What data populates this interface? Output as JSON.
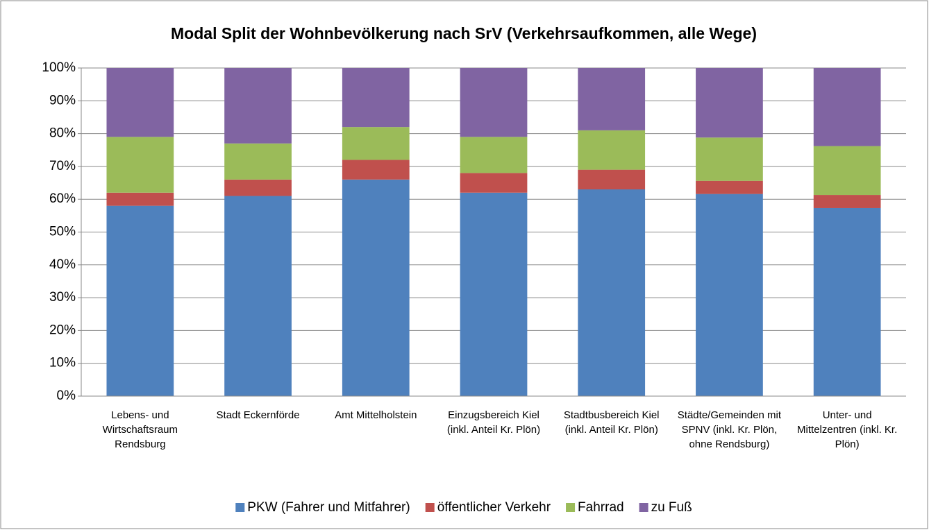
{
  "chart_data": {
    "type": "stacked_bar",
    "title": "Modal Split der Wohnbevölkerung nach SrV (Verkehrsaufkommen, alle Wege)",
    "categories": [
      "Lebens- und Wirtschaftsraum Rendsburg",
      "Stadt Eckernförde",
      "Amt Mittelholstein",
      "Einzugsbereich Kiel (inkl. Anteil Kr. Plön)",
      "Stadtbusbereich Kiel (inkl. Anteil Kr. Plön)",
      "Städte/Gemeinden mit SPNV (inkl. Kr. Plön, ohne Rendsburg)",
      "Unter- und Mittelzentren (inkl. Kr. Plön)"
    ],
    "series": [
      {
        "name": "PKW (Fahrer und Mitfahrer)",
        "color": "#4f81bd",
        "values": [
          58,
          61,
          66,
          62,
          63,
          61.6,
          57.3
        ]
      },
      {
        "name": "öffentlicher Verkehr",
        "color": "#c0504d",
        "values": [
          4,
          5,
          6,
          6,
          6,
          4,
          4
        ]
      },
      {
        "name": "Fahrrad",
        "color": "#9bbb59",
        "values": [
          17,
          11,
          10,
          11,
          12,
          13.2,
          14.9
        ]
      },
      {
        "name": "zu Fuß",
        "color": "#8064a2",
        "values": [
          21,
          23,
          18,
          21,
          19,
          21.2,
          23.8
        ]
      }
    ],
    "ylim": [
      0,
      100
    ],
    "yticks": [
      {
        "value": 0,
        "label": "0%"
      },
      {
        "value": 10,
        "label": "10%"
      },
      {
        "value": 20,
        "label": "20%"
      },
      {
        "value": 30,
        "label": "30%"
      },
      {
        "value": 40,
        "label": "40%"
      },
      {
        "value": 50,
        "label": "50%"
      },
      {
        "value": 60,
        "label": "60%"
      },
      {
        "value": 70,
        "label": "70%"
      },
      {
        "value": 80,
        "label": "80%"
      },
      {
        "value": 90,
        "label": "90%"
      },
      {
        "value": 100,
        "label": "100%"
      }
    ],
    "grid": true,
    "legend": "bottom"
  }
}
